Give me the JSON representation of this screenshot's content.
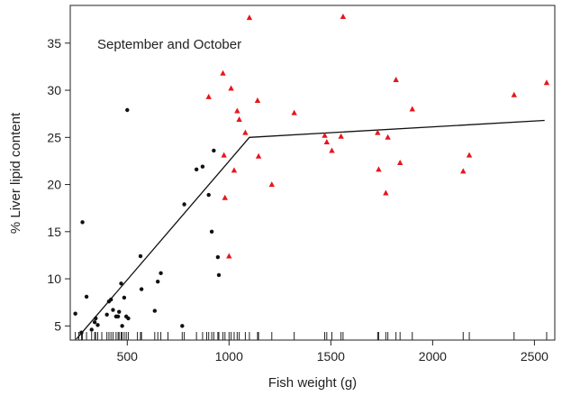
{
  "chart_data": {
    "type": "scatter",
    "title": "",
    "annotation": "September and October",
    "xlabel": "Fish weight (g)",
    "ylabel": "% Liver lipid content",
    "xlim": [
      220,
      2600
    ],
    "ylim": [
      3.5,
      39
    ],
    "xticks": [
      500,
      1000,
      1500,
      2000,
      2500
    ],
    "yticks": [
      5,
      10,
      15,
      20,
      25,
      30,
      35
    ],
    "grid": false,
    "legend": "none",
    "series": [
      {
        "marker": "circle",
        "color": "#111111",
        "points": [
          [
            245,
            6.3
          ],
          [
            275,
            4.3
          ],
          [
            280,
            16.0
          ],
          [
            300,
            8.1
          ],
          [
            325,
            4.6
          ],
          [
            340,
            5.4
          ],
          [
            345,
            5.8
          ],
          [
            355,
            5.1
          ],
          [
            400,
            6.2
          ],
          [
            410,
            7.6
          ],
          [
            420,
            7.8
          ],
          [
            430,
            6.7
          ],
          [
            445,
            6.0
          ],
          [
            455,
            6.0
          ],
          [
            460,
            6.5
          ],
          [
            470,
            9.5
          ],
          [
            475,
            5.0
          ],
          [
            485,
            8.0
          ],
          [
            495,
            6.0
          ],
          [
            500,
            27.9
          ],
          [
            505,
            5.8
          ],
          [
            570,
            8.9
          ],
          [
            565,
            12.4
          ],
          [
            635,
            6.6
          ],
          [
            650,
            9.7
          ],
          [
            665,
            10.6
          ],
          [
            770,
            5.0
          ],
          [
            780,
            17.9
          ],
          [
            840,
            21.6
          ],
          [
            870,
            21.9
          ],
          [
            900,
            18.9
          ],
          [
            915,
            15.0
          ],
          [
            925,
            23.6
          ],
          [
            945,
            12.3
          ],
          [
            950,
            10.4
          ]
        ]
      },
      {
        "marker": "triangle",
        "color": "#e8151c",
        "points": [
          [
            900,
            29.3
          ],
          [
            970,
            31.8
          ],
          [
            975,
            23.1
          ],
          [
            980,
            18.6
          ],
          [
            1000,
            12.4
          ],
          [
            1010,
            30.2
          ],
          [
            1025,
            21.5
          ],
          [
            1040,
            27.8
          ],
          [
            1050,
            26.9
          ],
          [
            1080,
            25.5
          ],
          [
            1100,
            37.7
          ],
          [
            1140,
            28.9
          ],
          [
            1145,
            23.0
          ],
          [
            1210,
            20.0
          ],
          [
            1320,
            27.6
          ],
          [
            1470,
            25.2
          ],
          [
            1480,
            24.5
          ],
          [
            1505,
            23.6
          ],
          [
            1550,
            25.1
          ],
          [
            1560,
            37.8
          ],
          [
            1730,
            25.5
          ],
          [
            1735,
            21.6
          ],
          [
            1770,
            19.1
          ],
          [
            1780,
            25.0
          ],
          [
            1820,
            31.1
          ],
          [
            1840,
            22.3
          ],
          [
            1900,
            28.0
          ],
          [
            2150,
            21.4
          ],
          [
            2180,
            23.1
          ],
          [
            2400,
            29.5
          ],
          [
            2560,
            30.8
          ]
        ]
      }
    ],
    "fit_line": [
      [
        250,
        3.6
      ],
      [
        1100,
        25.0
      ],
      [
        2550,
        26.8
      ]
    ],
    "rug": [
      245,
      262,
      275,
      280,
      300,
      325,
      340,
      345,
      355,
      375,
      400,
      410,
      420,
      430,
      445,
      455,
      460,
      470,
      475,
      485,
      495,
      505,
      550,
      565,
      570,
      635,
      650,
      665,
      700,
      770,
      780,
      840,
      870,
      890,
      900,
      915,
      925,
      945,
      950,
      970,
      980,
      1000,
      1010,
      1025,
      1040,
      1050,
      1080,
      1100,
      1140,
      1145,
      1210,
      1320,
      1470,
      1480,
      1505,
      1550,
      1560,
      1730,
      1735,
      1770,
      1780,
      1820,
      1840,
      1900,
      2150,
      2180,
      2400,
      2560
    ]
  }
}
